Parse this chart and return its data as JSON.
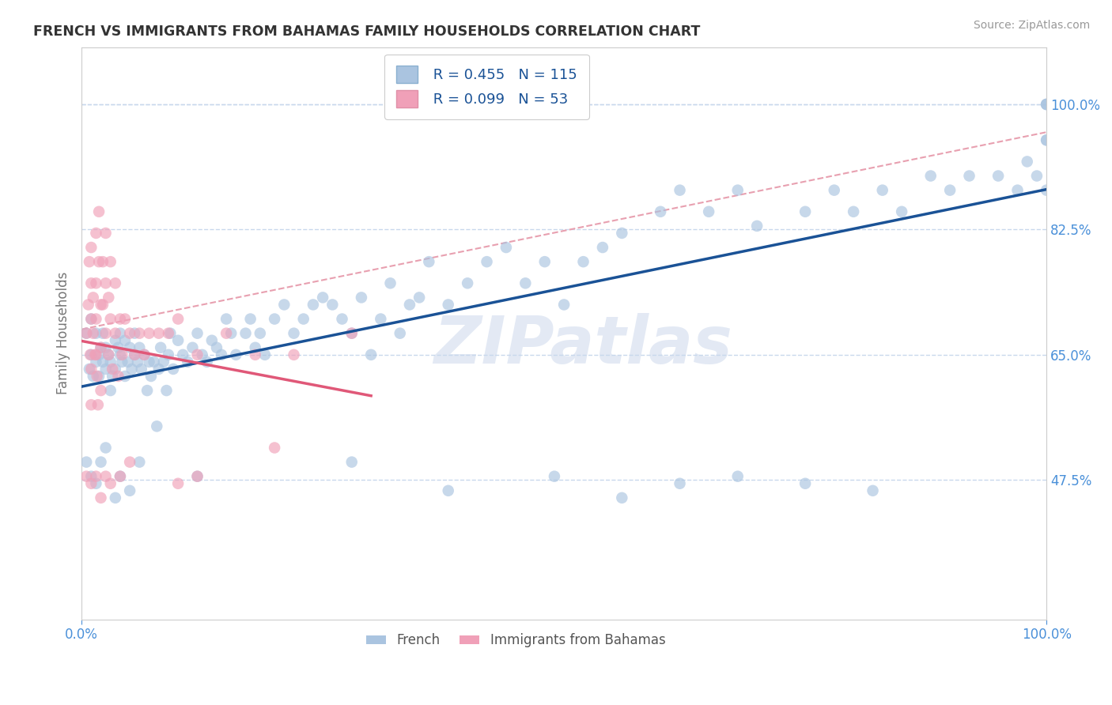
{
  "title": "FRENCH VS IMMIGRANTS FROM BAHAMAS FAMILY HOUSEHOLDS CORRELATION CHART",
  "source": "Source: ZipAtlas.com",
  "xlabel": "",
  "ylabel": "Family Households",
  "legend_labels": [
    "French",
    "Immigrants from Bahamas"
  ],
  "r_french": 0.455,
  "n_french": 115,
  "r_bahamas": 0.099,
  "n_bahamas": 53,
  "blue_color": "#aac4e0",
  "blue_line_color": "#1a5296",
  "pink_color": "#f0a0b8",
  "pink_line_color": "#e05878",
  "dashed_line_color": "#e8a0b0",
  "right_tick_color": "#4a90d9",
  "ytick_right_labels": [
    "47.5%",
    "65.0%",
    "82.5%",
    "100.0%"
  ],
  "ytick_right_values": [
    0.475,
    0.65,
    0.825,
    1.0
  ],
  "xlim": [
    0.0,
    1.0
  ],
  "ylim": [
    0.28,
    1.08
  ],
  "background_color": "#ffffff",
  "grid_color": "#c8d8ec",
  "watermark": "ZIPatlas",
  "french_x": [
    0.005,
    0.008,
    0.01,
    0.01,
    0.012,
    0.015,
    0.015,
    0.018,
    0.018,
    0.02,
    0.022,
    0.022,
    0.025,
    0.025,
    0.028,
    0.03,
    0.03,
    0.032,
    0.035,
    0.035,
    0.038,
    0.04,
    0.04,
    0.042,
    0.045,
    0.045,
    0.048,
    0.05,
    0.052,
    0.055,
    0.055,
    0.058,
    0.06,
    0.062,
    0.065,
    0.068,
    0.07,
    0.072,
    0.075,
    0.078,
    0.08,
    0.082,
    0.085,
    0.088,
    0.09,
    0.092,
    0.095,
    0.1,
    0.105,
    0.11,
    0.115,
    0.12,
    0.125,
    0.13,
    0.135,
    0.14,
    0.145,
    0.15,
    0.155,
    0.16,
    0.17,
    0.175,
    0.18,
    0.185,
    0.19,
    0.2,
    0.21,
    0.22,
    0.23,
    0.24,
    0.25,
    0.26,
    0.27,
    0.28,
    0.29,
    0.3,
    0.31,
    0.32,
    0.33,
    0.34,
    0.35,
    0.36,
    0.38,
    0.4,
    0.42,
    0.44,
    0.46,
    0.48,
    0.5,
    0.52,
    0.54,
    0.56,
    0.6,
    0.62,
    0.65,
    0.68,
    0.7,
    0.75,
    0.78,
    0.8,
    0.83,
    0.85,
    0.88,
    0.9,
    0.92,
    0.95,
    0.97,
    0.98,
    0.99,
    1.0,
    1.0,
    1.0,
    1.0,
    1.0,
    1.0
  ],
  "french_y": [
    0.68,
    0.63,
    0.7,
    0.65,
    0.62,
    0.68,
    0.64,
    0.65,
    0.62,
    0.66,
    0.64,
    0.68,
    0.63,
    0.66,
    0.65,
    0.6,
    0.64,
    0.62,
    0.67,
    0.63,
    0.66,
    0.65,
    0.68,
    0.64,
    0.67,
    0.62,
    0.64,
    0.66,
    0.63,
    0.65,
    0.68,
    0.64,
    0.66,
    0.63,
    0.65,
    0.6,
    0.64,
    0.62,
    0.64,
    0.55,
    0.63,
    0.66,
    0.64,
    0.6,
    0.65,
    0.68,
    0.63,
    0.67,
    0.65,
    0.64,
    0.66,
    0.68,
    0.65,
    0.64,
    0.67,
    0.66,
    0.65,
    0.7,
    0.68,
    0.65,
    0.68,
    0.7,
    0.66,
    0.68,
    0.65,
    0.7,
    0.72,
    0.68,
    0.7,
    0.72,
    0.73,
    0.72,
    0.7,
    0.68,
    0.73,
    0.65,
    0.7,
    0.75,
    0.68,
    0.72,
    0.73,
    0.78,
    0.72,
    0.75,
    0.78,
    0.8,
    0.75,
    0.78,
    0.72,
    0.78,
    0.8,
    0.82,
    0.85,
    0.88,
    0.85,
    0.88,
    0.83,
    0.85,
    0.88,
    0.85,
    0.88,
    0.85,
    0.9,
    0.88,
    0.9,
    0.9,
    0.88,
    0.92,
    0.9,
    0.88,
    1.0,
    1.0,
    0.95,
    1.0,
    0.95
  ],
  "french_x_low": [
    0.005,
    0.01,
    0.015,
    0.02,
    0.025,
    0.035,
    0.04,
    0.05,
    0.06,
    0.12,
    0.28,
    0.38,
    0.49,
    0.56,
    0.62,
    0.68,
    0.75,
    0.82
  ],
  "french_y_low": [
    0.5,
    0.48,
    0.47,
    0.5,
    0.52,
    0.45,
    0.48,
    0.46,
    0.5,
    0.48,
    0.5,
    0.46,
    0.48,
    0.45,
    0.47,
    0.48,
    0.47,
    0.46
  ],
  "bahamas_x": [
    0.005,
    0.007,
    0.008,
    0.009,
    0.01,
    0.01,
    0.01,
    0.01,
    0.01,
    0.012,
    0.012,
    0.014,
    0.015,
    0.015,
    0.015,
    0.015,
    0.016,
    0.017,
    0.018,
    0.018,
    0.02,
    0.02,
    0.02,
    0.022,
    0.022,
    0.025,
    0.025,
    0.025,
    0.028,
    0.028,
    0.03,
    0.03,
    0.032,
    0.035,
    0.035,
    0.038,
    0.04,
    0.042,
    0.045,
    0.05,
    0.055,
    0.06,
    0.065,
    0.07,
    0.08,
    0.09,
    0.1,
    0.12,
    0.15,
    0.18,
    0.22,
    0.28,
    0.2
  ],
  "bahamas_y": [
    0.68,
    0.72,
    0.78,
    0.65,
    0.8,
    0.75,
    0.7,
    0.63,
    0.58,
    0.73,
    0.68,
    0.65,
    0.82,
    0.75,
    0.7,
    0.65,
    0.62,
    0.58,
    0.85,
    0.78,
    0.72,
    0.66,
    0.6,
    0.78,
    0.72,
    0.82,
    0.75,
    0.68,
    0.73,
    0.65,
    0.78,
    0.7,
    0.63,
    0.75,
    0.68,
    0.62,
    0.7,
    0.65,
    0.7,
    0.68,
    0.65,
    0.68,
    0.65,
    0.68,
    0.68,
    0.68,
    0.7,
    0.65,
    0.68,
    0.65,
    0.65,
    0.68,
    0.52
  ],
  "bahamas_x_low": [
    0.005,
    0.01,
    0.015,
    0.02,
    0.025,
    0.03,
    0.04,
    0.05,
    0.1,
    0.12
  ],
  "bahamas_y_low": [
    0.48,
    0.47,
    0.48,
    0.45,
    0.48,
    0.47,
    0.48,
    0.5,
    0.47,
    0.48
  ]
}
